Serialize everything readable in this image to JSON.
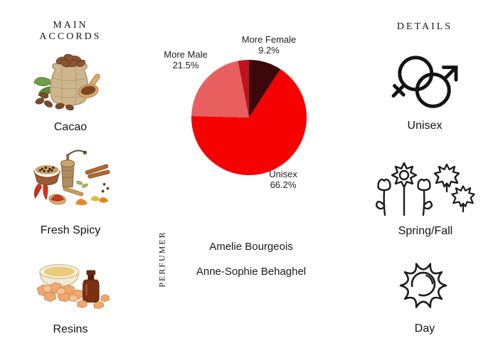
{
  "page": {
    "background": "#ffffff",
    "text_color": "#1c1c1c"
  },
  "main_accords": {
    "title": "MAIN ACCORDS",
    "items": [
      {
        "label": "Cacao",
        "icon": "cacao-beans-sack-photo"
      },
      {
        "label": "Fresh Spicy",
        "icon": "spices-assortment-photo"
      },
      {
        "label": "Resins",
        "icon": "resin-bowl-bottle-photo"
      }
    ]
  },
  "perfumer": {
    "title": "PERFUMER",
    "names": [
      "Amelie Bourgeois",
      "Anne-Sophie Behaghel"
    ]
  },
  "details": {
    "title": "DETAILS",
    "items": [
      {
        "label": "Unisex",
        "icon": "unisex-gender-icon"
      },
      {
        "label": "Spring/Fall",
        "icon": "spring-fall-flowers-leaves-icon"
      },
      {
        "label": "Day",
        "icon": "day-sun-icon"
      }
    ]
  },
  "chart_data": {
    "type": "pie",
    "title": "",
    "legend": "none",
    "start_angle_deg": 0,
    "direction": "clockwise",
    "slices": [
      {
        "label": "More Female",
        "value": 9.2,
        "pct_text": "9.2%",
        "color": "#3d0809"
      },
      {
        "label": "Unisex",
        "value": 66.2,
        "pct_text": "66.2%",
        "color": "#f50102"
      },
      {
        "label": "More Male",
        "value": 21.5,
        "pct_text": "21.5%",
        "color": "#e95f5f"
      },
      {
        "label": "",
        "value": 3.1,
        "pct_text": "",
        "color": "#bc1420"
      }
    ]
  }
}
